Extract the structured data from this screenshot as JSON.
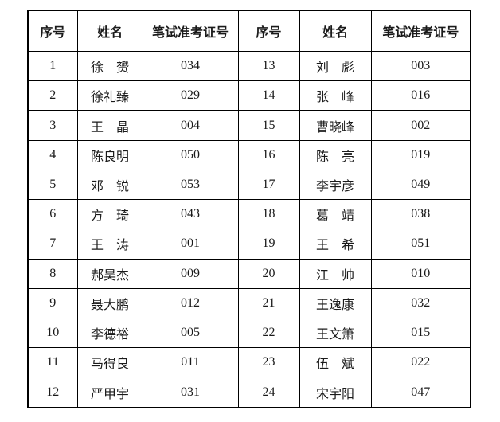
{
  "colors": {
    "background": "#ffffff",
    "border": "#000000",
    "text": "#1a1a1a"
  },
  "table": {
    "headers": [
      "序号",
      "姓名",
      "笔试准考证号",
      "序号",
      "姓名",
      "笔试准考证号"
    ],
    "rows": [
      [
        "1",
        "徐　赟",
        "034",
        "13",
        "刘　彪",
        "003"
      ],
      [
        "2",
        "徐礼臻",
        "029",
        "14",
        "张　峰",
        "016"
      ],
      [
        "3",
        "王　晶",
        "004",
        "15",
        "曹晓峰",
        "002"
      ],
      [
        "4",
        "陈良明",
        "050",
        "16",
        "陈　亮",
        "019"
      ],
      [
        "5",
        "邓　锐",
        "053",
        "17",
        "李宇彦",
        "049"
      ],
      [
        "6",
        "方　琦",
        "043",
        "18",
        "葛　靖",
        "038"
      ],
      [
        "7",
        "王　涛",
        "001",
        "19",
        "王　希",
        "051"
      ],
      [
        "8",
        "郝昊杰",
        "009",
        "20",
        "江　帅",
        "010"
      ],
      [
        "9",
        "聂大鹏",
        "012",
        "21",
        "王逸康",
        "032"
      ],
      [
        "10",
        "李德裕",
        "005",
        "22",
        "王文箫",
        "015"
      ],
      [
        "11",
        "马得良",
        "011",
        "23",
        "伍　斌",
        "022"
      ],
      [
        "12",
        "严甲宇",
        "031",
        "24",
        "宋宇阳",
        "047"
      ]
    ]
  }
}
